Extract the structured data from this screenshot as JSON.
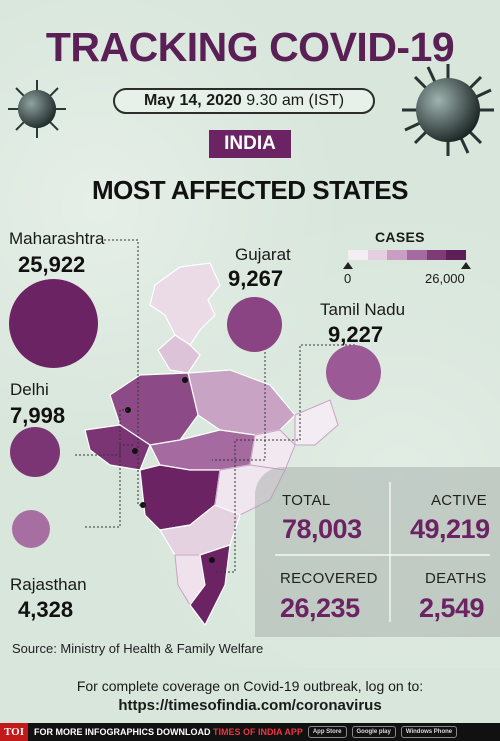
{
  "title": "TRACKING COVID-19",
  "date": {
    "bold": "May 14, 2020",
    "rest": " 9.30 am (IST)"
  },
  "country_tag": "INDIA",
  "subtitle": "MOST AFFECTED STATES",
  "legend": {
    "title": "CASES",
    "min_label": "0",
    "max_label": "26,000",
    "colors": [
      "#f4eef3",
      "#e3cfe0",
      "#c99ec4",
      "#a56a9f",
      "#7e3b77",
      "#5e1e58"
    ]
  },
  "states": [
    {
      "name": "Maharashtra",
      "cases": "25,922",
      "color": "#6b2363"
    },
    {
      "name": "Gujarat",
      "cases": "9,267",
      "color": "#8a4483"
    },
    {
      "name": "Tamil Nadu",
      "cases": "9,227",
      "color": "#9b5a95"
    },
    {
      "name": "Delhi",
      "cases": "7,998",
      "color": "#7c3574"
    },
    {
      "name": "Rajasthan",
      "cases": "4,328",
      "color": "#a76ea2"
    }
  ],
  "stats": {
    "total": {
      "label": "TOTAL",
      "value": "78,003"
    },
    "active": {
      "label": "ACTIVE",
      "value": "49,219"
    },
    "recovered": {
      "label": "RECOVERED",
      "value": "26,235"
    },
    "deaths": {
      "label": "DEATHS",
      "value": "2,549"
    }
  },
  "source": "Source: Ministry of Health & Family Welfare",
  "coverage_text": "For complete coverage on Covid-19 outbreak, log on to:",
  "coverage_url": "https://timesofindia.com/coronavirus",
  "bottom_bar": {
    "logo": "TOI",
    "text_white": "FOR MORE  INFOGRAPHICS DOWNLOAD ",
    "text_red": "TIMES OF INDIA APP",
    "badges": [
      "App Store",
      "Google play",
      "Windows Phone"
    ]
  }
}
